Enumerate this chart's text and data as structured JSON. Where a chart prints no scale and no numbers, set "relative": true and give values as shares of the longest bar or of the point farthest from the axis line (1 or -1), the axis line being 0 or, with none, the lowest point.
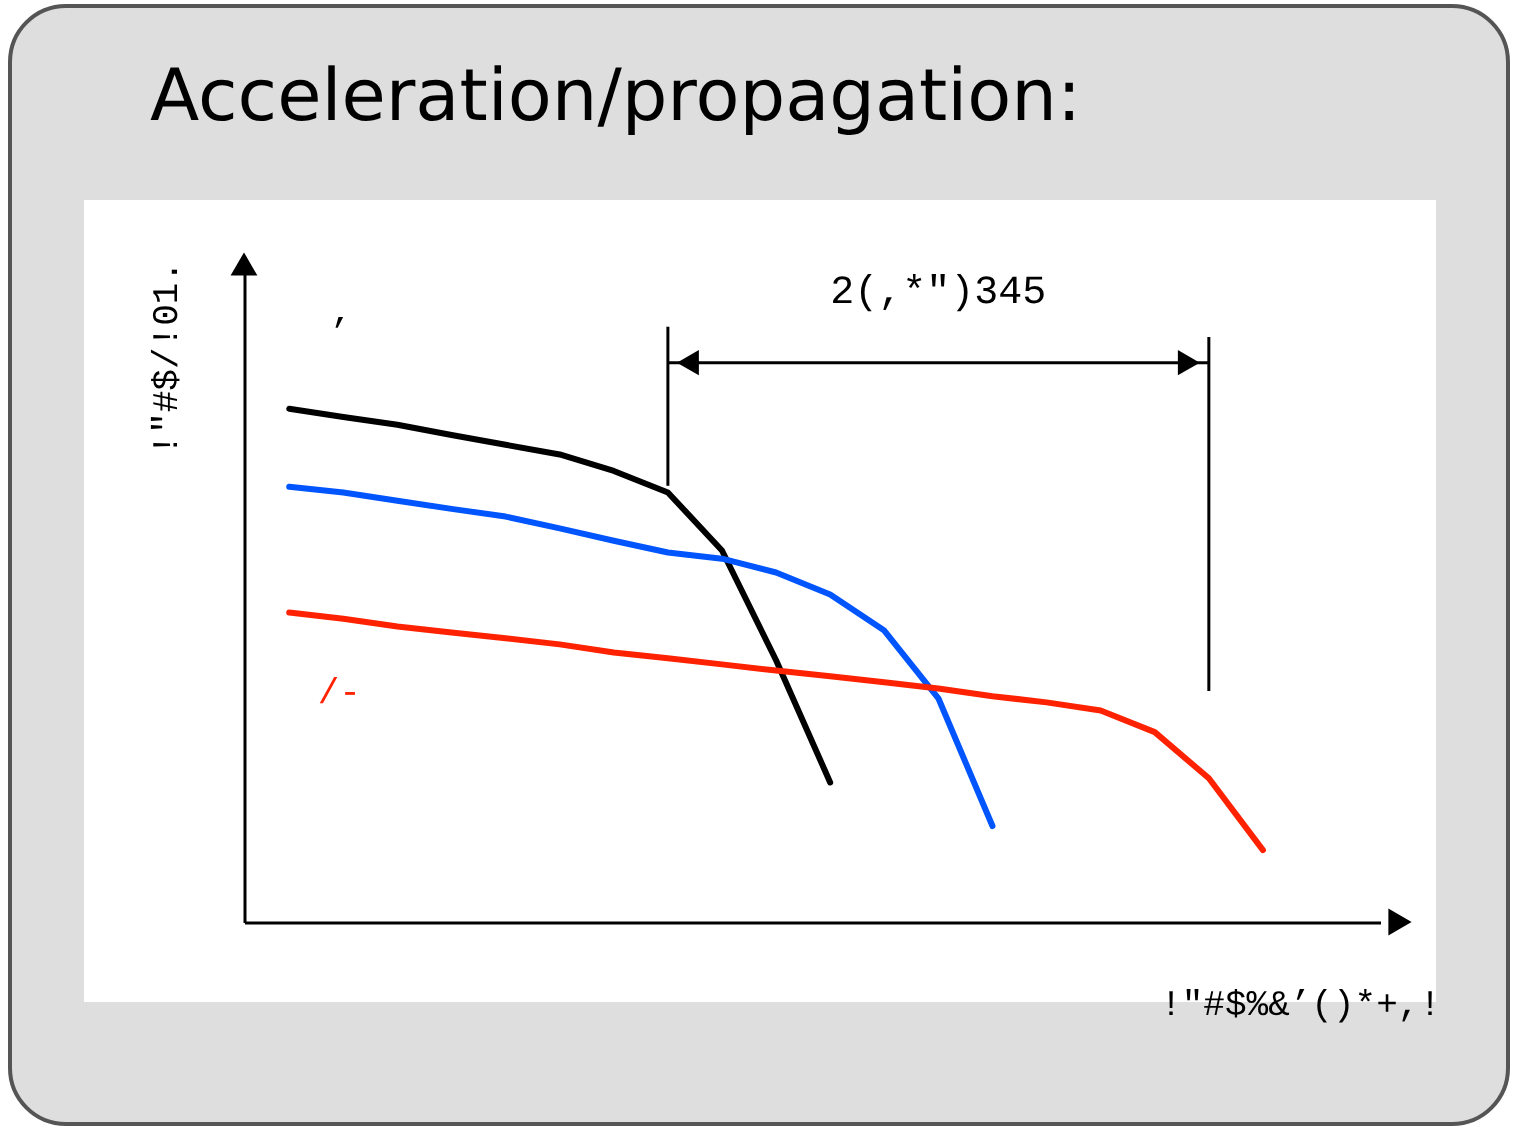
{
  "chart_data": {
    "type": "line",
    "title": "Acceleration/propagation:",
    "xlabel": "!\"#$%&’()*+,!",
    "ylabel": "!\"#$/!01.",
    "relative": true,
    "line_style": "solid",
    "categories": [
      null,
      null,
      null,
      null,
      null,
      null,
      null,
      null,
      null,
      null,
      null,
      null,
      null,
      null,
      null,
      null,
      null,
      null,
      null,
      null
    ],
    "series": [
      {
        "name": "’",
        "color": "#000000",
        "values": [
          1.0,
          0.984,
          0.969,
          0.949,
          0.93,
          0.911,
          0.879,
          0.837,
          0.724,
          0.51,
          0.272,
          null,
          null,
          null,
          null,
          null,
          null,
          null,
          null,
          null
        ]
      },
      {
        "color": "#0055ff",
        "values": [
          0.848,
          0.837,
          0.821,
          0.805,
          0.79,
          0.767,
          0.743,
          0.72,
          0.708,
          0.681,
          0.638,
          0.568,
          0.436,
          0.187,
          null,
          null,
          null,
          null,
          null,
          null
        ]
      },
      {
        "name": "/-",
        "color": "#ff2200",
        "values": [
          0.603,
          0.591,
          0.576,
          0.564,
          0.553,
          0.541,
          0.525,
          0.514,
          0.502,
          0.49,
          0.479,
          0.467,
          0.455,
          0.44,
          0.428,
          0.412,
          0.37,
          0.28,
          0.14,
          null
        ]
      }
    ],
    "annotations": [
      "2(,*\")345"
    ]
  }
}
